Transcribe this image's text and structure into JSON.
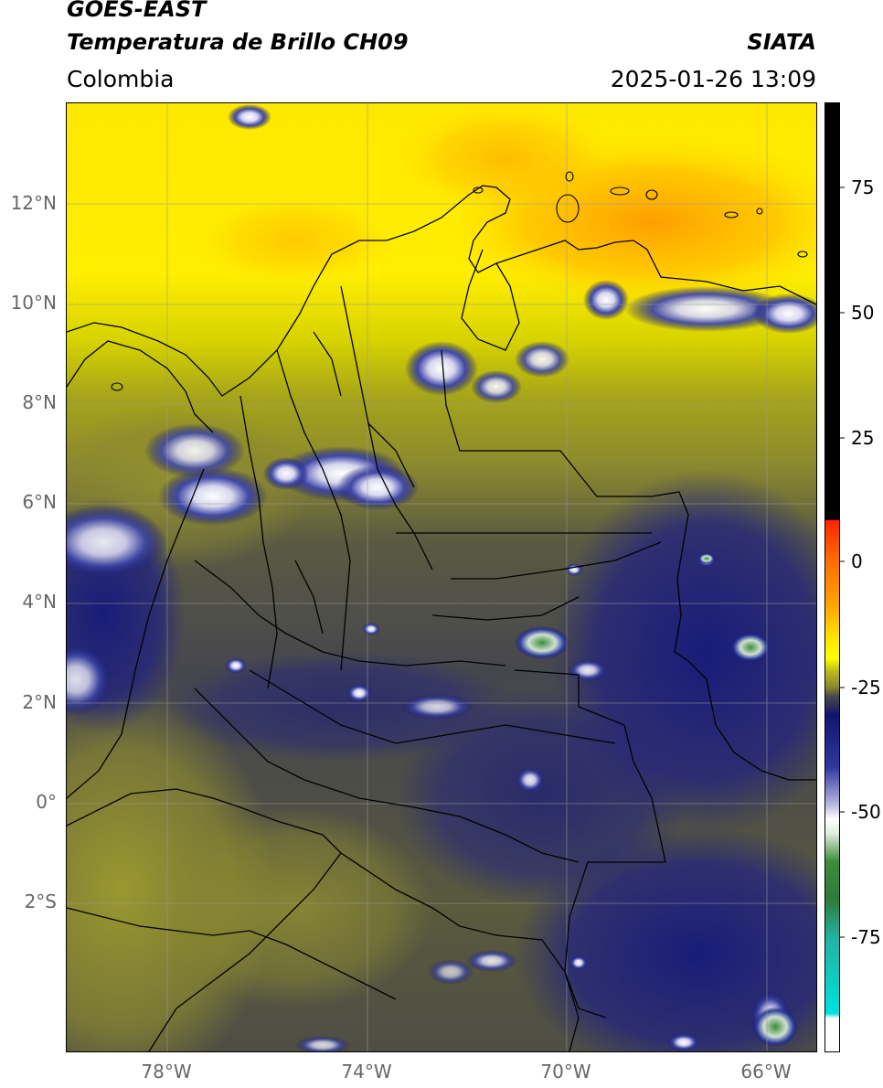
{
  "header": {
    "satellite": "GOES-EAST",
    "product": "Temperatura de Brillo CH09",
    "org": "SIATA",
    "region": "Colombia",
    "datetime": "2025-01-26 13:09"
  },
  "map": {
    "lat_ticks": [
      "12°N",
      "10°N",
      "8°N",
      "6°N",
      "4°N",
      "2°N",
      "0°",
      "2°S"
    ],
    "lon_ticks": [
      "78°W",
      "74°W",
      "70°W",
      "66°W"
    ],
    "extent": {
      "lon_min": -80.0,
      "lon_max": -65.0,
      "lat_min": -4.9,
      "lat_max": 14.0
    },
    "legend": {
      "ticks": [
        "75",
        "50",
        "25",
        "0",
        "-25",
        "-50",
        "-75"
      ],
      "colors": {
        "black": "#000000",
        "red": "#ff2400",
        "orange": "#ffa500",
        "yellow": "#ffff00",
        "olive": "#8c8c28",
        "gray": "#4a4a50",
        "navy": "#101470",
        "white": "#ffffff",
        "green": "#3c8c3c",
        "teal": "#20b4a0",
        "cyan": "#00e0e0"
      }
    }
  }
}
